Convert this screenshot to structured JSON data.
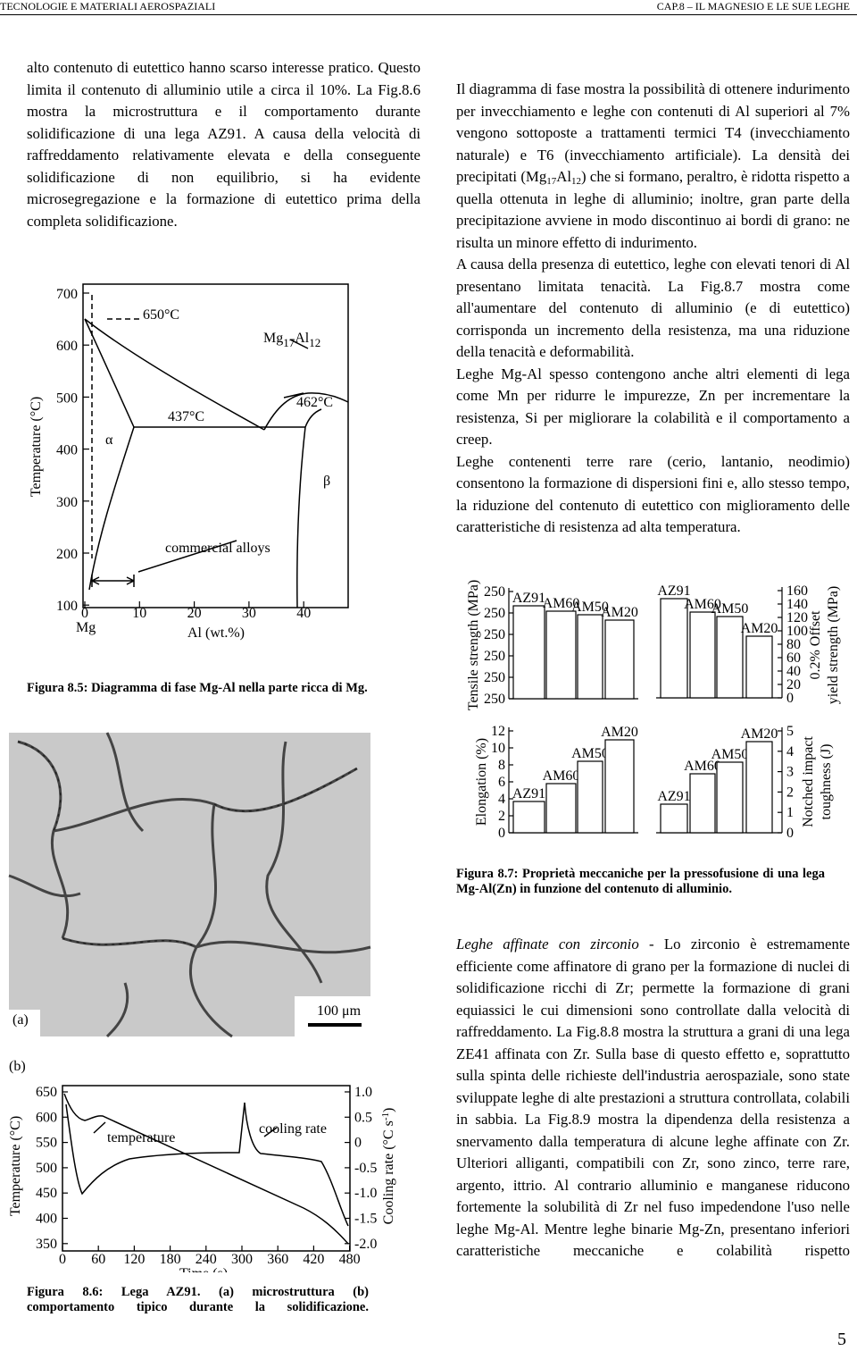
{
  "header": {
    "left": "TECNOLOGIE E MATERIALI AEROSPAZIALI",
    "right": "CAP.8 – IL MAGNESIO E LE SUE LEGHE"
  },
  "left_text": "alto contenuto di eutettico hanno scarso interesse pratico. Questo limita il contenuto di alluminio utile a circa il 10%. La Fig.8.6 mostra la microstruttura e il comportamento durante solidificazione di una lega AZ91. A causa della velocità di raffreddamento relativamente elevata e della conseguente solidificazione di non equilibrio, si ha evidente microsegregazione e la formazione di eutettico prima della completa solidificazione.",
  "right_text": {
    "p1": [
      "Il diagramma di fase mostra la possibilità di ottenere indurimento per invecchiamento e leghe con contenuti di Al superiori al 7% vengono sottoposte a trattamenti termici T4 (invecchiamento naturale) e T6 (invecchiamento artificiale). La densità dei precipitati (Mg",
      "17",
      "Al",
      "12",
      ") che si formano, peraltro, è ridotta rispetto a quella ottenuta in leghe di alluminio; inoltre, gran parte della precipitazione avviene in modo discontinuo ai bordi di grano: ne risulta un minore effetto di indurimento."
    ],
    "p2": "A causa della presenza di eutettico, leghe con elevati tenori di Al presentano limitata tenacità. La Fig.8.7 mostra come all'aumentare del contenuto di alluminio (e di eutettico) corrisponda un incremento della resistenza, ma una riduzione della tenacità e deformabilità.",
    "p3": "Leghe Mg-Al spesso contengono anche altri elementi di lega come Mn per ridurre le impurezze, Zn per incrementare la resistenza, Si per migliorare la colabilità e il comportamento a creep.",
    "p4": "Leghe contenenti terre rare (cerio, lantanio, neodimio) consentono la formazione di dispersioni fini e, allo stesso tempo, la riduzione del contenuto di eutettico con miglioramento delle caratteristiche di resistenza ad alta temperatura.",
    "p5": [
      "Leghe affinate con zirconio",
      " - Lo zirconio è estremamente efficiente come affinatore di grano per la formazione di nuclei di solidificazione ricchi di Zr; permette la formazione di grani equiassici le cui dimensioni sono controllate dalla velocità di raffreddamento. La Fig.8.8 mostra la struttura a grani di una lega ZE41 affinata con Zr. Sulla base di questo effetto e, soprattutto sulla spinta delle richieste dell'industria aerospaziale, sono state sviluppate leghe di alte prestazioni a struttura controllata, colabili in sabbia. La Fig.8.9 mostra la dipendenza della resistenza a snervamento dalla temperatura di alcune leghe affinate con Zr. Ulteriori alliganti, compatibili con Zr, sono zinco, terre rare, argento, ittrio. Al contrario alluminio e manganese riducono fortemente la solubilità di Zr nel fuso impedendone l'uso nelle leghe Mg-Al. Mentre leghe binarie Mg-Zn, presentano inferiori caratteristiche meccaniche e colabilità rispetto"
    ]
  },
  "fig85": {
    "y_label": "Temperature (°C)",
    "yticks": [
      700,
      600,
      500,
      400,
      300,
      200,
      100
    ],
    "xticks": [
      0,
      10,
      20,
      30,
      40
    ],
    "x_left": "Mg",
    "x_label": "Al (wt.%)",
    "t650": "650°C",
    "t437": "437°C",
    "t462": "462°C",
    "phase": [
      "Mg",
      "17",
      "Al",
      "12"
    ],
    "alpha": "α",
    "beta": "β",
    "commercial": "commercial alloys",
    "caption": "Figura 8.5: Diagramma di fase Mg-Al nella parte ricca di Mg."
  },
  "fig86": {
    "panel_a": "(a)",
    "panel_b": "(b)",
    "scale": "100 μm",
    "yticks": [
      650,
      600,
      550,
      500,
      450,
      400,
      350
    ],
    "y2ticks": [
      "1.0",
      "0.5",
      "0",
      "-0.5",
      "-1.0",
      "-1.5",
      "-2.0"
    ],
    "xticks": [
      0,
      60,
      120,
      180,
      240,
      300,
      360,
      420,
      480
    ],
    "y_label": "Temperature (°C)",
    "y2_label": [
      "Cooling rate (°C s",
      "-1",
      ")"
    ],
    "x_label": "Time (s)",
    "cooling": "cooling rate",
    "temperature": "temperature",
    "caption": "Figura 8.6: Lega AZ91. (a) microstruttura (b) comportamento tipico durante la solidificazione."
  },
  "fig87": {
    "alloys": [
      "AZ91",
      "AM60",
      "AM50",
      "AM20"
    ],
    "tensile_label": "Tensile strength (MPa)",
    "tensile_ticks": [
      250,
      250,
      250,
      250,
      250,
      250
    ],
    "yield_label": [
      "0.2% Offset",
      "yield strength (MPa)"
    ],
    "yield_ticks": [
      160,
      140,
      120,
      100,
      80,
      60,
      40,
      20,
      0
    ],
    "elong_label": "Elongation (%)",
    "elong_ticks": [
      12,
      10,
      8,
      6,
      4,
      2,
      0
    ],
    "impact_label": [
      "Notched impact",
      "toughness (J)"
    ],
    "impact_ticks": [
      5,
      4,
      3,
      2,
      1,
      0
    ],
    "caption": "Figura 8.7: Proprietà meccaniche per la pressofusione di una lega Mg-Al(Zn) in funzione del contenuto di alluminio."
  },
  "page_number": "5"
}
